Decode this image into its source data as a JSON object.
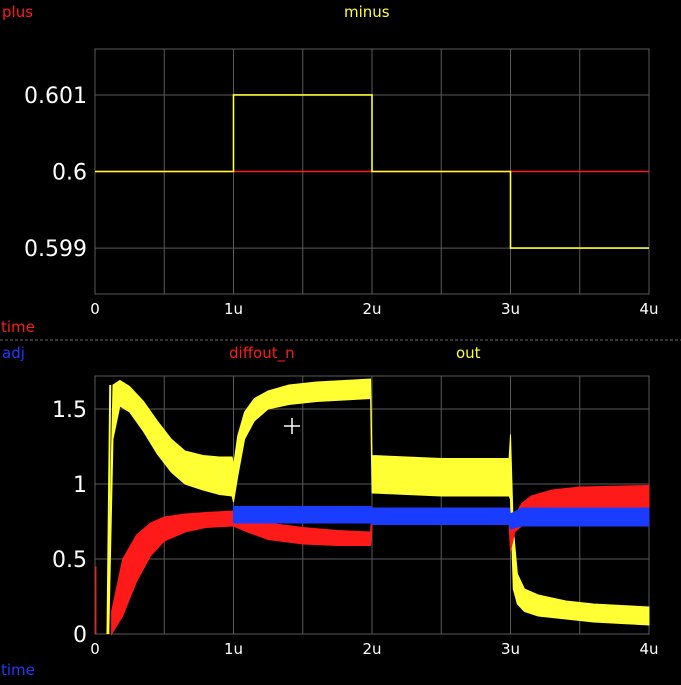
{
  "colors": {
    "background": "#000000",
    "grid": "#5a5a5a",
    "axis_text": "#ffffff",
    "red": "#ff1a1a",
    "yellow": "#ffff33",
    "blue": "#1a3cff",
    "separator": "#666666"
  },
  "chart_data": [
    {
      "type": "line",
      "legend": [
        {
          "name": "plus",
          "color": "#ff1a1a"
        },
        {
          "name": "minus",
          "color": "#ffff33"
        }
      ],
      "xlabel": "time",
      "x_ticks": [
        {
          "value": 0,
          "label": "0"
        },
        {
          "value": 1,
          "label": "1u"
        },
        {
          "value": 2,
          "label": "2u"
        },
        {
          "value": 3,
          "label": "3u"
        },
        {
          "value": 4,
          "label": "4u"
        }
      ],
      "xlim": [
        0,
        4
      ],
      "y_ticks": [
        {
          "value": 0.601,
          "label": "0.601"
        },
        {
          "value": 0.6,
          "label": "0.6"
        },
        {
          "value": 0.599,
          "label": "0.599"
        }
      ],
      "ylim": [
        0.5984,
        0.6016
      ],
      "grid": true,
      "series": [
        {
          "name": "plus",
          "color": "#ff1a1a",
          "x": [
            0,
            4
          ],
          "y": [
            0.6,
            0.6
          ]
        },
        {
          "name": "minus",
          "color": "#ffff33",
          "x": [
            0,
            1,
            1,
            2,
            2,
            3,
            3,
            4
          ],
          "y": [
            0.6,
            0.6,
            0.601,
            0.601,
            0.6,
            0.6,
            0.599,
            0.599
          ]
        }
      ]
    },
    {
      "type": "area",
      "legend": [
        {
          "name": "adj",
          "color": "#1a3cff"
        },
        {
          "name": "diffout_n",
          "color": "#ff1a1a"
        },
        {
          "name": "out",
          "color": "#ffff33"
        }
      ],
      "xlabel": "time",
      "x_ticks": [
        {
          "value": 0,
          "label": "0"
        },
        {
          "value": 1,
          "label": "1u"
        },
        {
          "value": 2,
          "label": "2u"
        },
        {
          "value": 3,
          "label": "3u"
        },
        {
          "value": 4,
          "label": "4u"
        }
      ],
      "xlim": [
        0,
        4
      ],
      "y_ticks": [
        {
          "value": 1.5,
          "label": "1.5"
        },
        {
          "value": 1,
          "label": "1"
        },
        {
          "value": 0.5,
          "label": "0.5"
        },
        {
          "value": 0,
          "label": "0"
        }
      ],
      "ylim": [
        0,
        1.72
      ],
      "grid": true,
      "series": [
        {
          "name": "out",
          "color": "#ffff33",
          "x": [
            0.1,
            0.13,
            0.18,
            0.25,
            0.35,
            0.45,
            0.55,
            0.65,
            0.78,
            0.9,
            0.99,
            1.0,
            1.03,
            1.08,
            1.15,
            1.25,
            1.4,
            1.6,
            1.8,
            1.99,
            2.0,
            2.5,
            2.99,
            3.0,
            3.02,
            3.05,
            3.1,
            3.2,
            3.4,
            3.6,
            3.8,
            4.0
          ],
          "high": [
            0.4,
            1.66,
            1.69,
            1.65,
            1.55,
            1.42,
            1.3,
            1.22,
            1.19,
            1.18,
            1.18,
            1.12,
            1.32,
            1.48,
            1.57,
            1.62,
            1.66,
            1.68,
            1.69,
            1.7,
            1.19,
            1.17,
            1.17,
            1.33,
            0.7,
            0.4,
            0.3,
            0.26,
            0.22,
            0.2,
            0.19,
            0.18
          ],
          "low": [
            0.0,
            1.3,
            1.52,
            1.48,
            1.35,
            1.2,
            1.08,
            1.0,
            0.96,
            0.93,
            0.92,
            0.88,
            1.05,
            1.3,
            1.42,
            1.5,
            1.53,
            1.55,
            1.56,
            1.57,
            0.94,
            0.92,
            0.92,
            0.9,
            0.3,
            0.2,
            0.15,
            0.12,
            0.1,
            0.08,
            0.07,
            0.06
          ]
        },
        {
          "name": "diffout_n",
          "color": "#ff1a1a",
          "x": [
            0.12,
            0.2,
            0.3,
            0.4,
            0.5,
            0.65,
            0.8,
            1.0,
            1.1,
            1.25,
            1.5,
            1.75,
            1.99,
            2.0,
            2.5,
            2.99,
            3.0,
            3.03,
            3.08,
            3.15,
            3.3,
            3.5,
            4.0
          ],
          "high": [
            0.15,
            0.5,
            0.66,
            0.74,
            0.78,
            0.8,
            0.81,
            0.82,
            0.78,
            0.74,
            0.71,
            0.69,
            0.68,
            0.84,
            0.84,
            0.84,
            0.7,
            0.78,
            0.87,
            0.92,
            0.96,
            0.98,
            0.99
          ],
          "low": [
            0.0,
            0.12,
            0.35,
            0.52,
            0.62,
            0.68,
            0.71,
            0.72,
            0.68,
            0.63,
            0.6,
            0.59,
            0.59,
            0.73,
            0.73,
            0.73,
            0.55,
            0.68,
            0.72,
            0.72,
            0.72,
            0.72,
            0.72
          ]
        },
        {
          "name": "adj",
          "color": "#1a3cff",
          "x": [
            1.0,
            1.99,
            2.0,
            2.99,
            3.0,
            3.08,
            4.0
          ],
          "high": [
            0.85,
            0.85,
            0.84,
            0.84,
            0.8,
            0.84,
            0.84
          ],
          "low": [
            0.74,
            0.74,
            0.73,
            0.73,
            0.7,
            0.72,
            0.72
          ]
        }
      ]
    }
  ]
}
